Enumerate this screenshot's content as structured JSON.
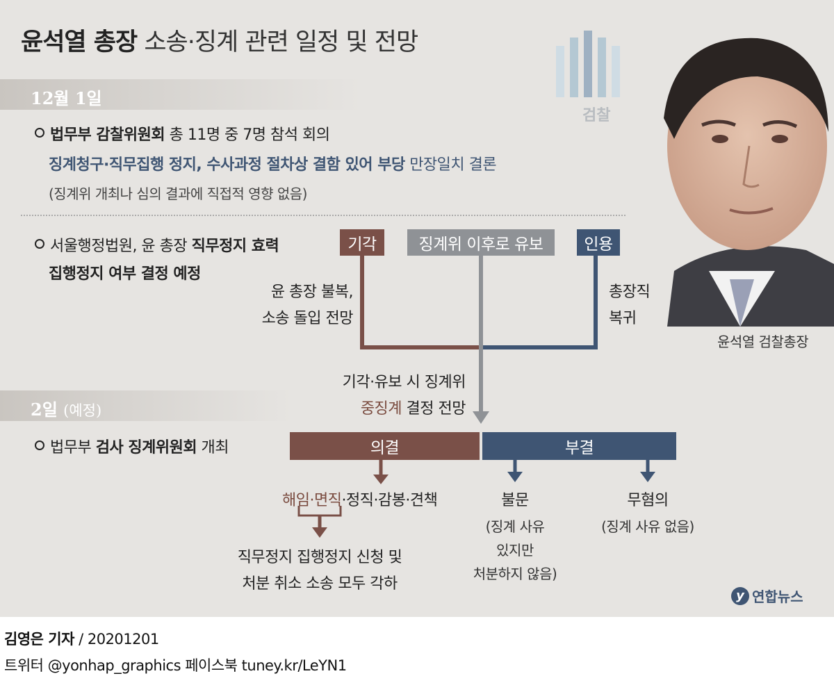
{
  "title": {
    "bold": "윤석열 총장",
    "rest": "소송·징계 관련 일정 및 전망"
  },
  "logo_text": "검찰",
  "photo_caption": "윤석열 검찰총장",
  "date1": "12월 1일",
  "date2": {
    "main": "2일",
    "sub": "(예정)"
  },
  "item1": {
    "line1_bold": "법무부 감찰위원회",
    "line1_rest": " 총 11명 중 7명 참석 회의",
    "line2_blue": "징계청구·직무집행 정지, 수사과정 절차상 결함 있어 부당",
    "line2_rest": " 만장일치 결론",
    "line3": "(징계위 개최나 심의 결과에 직접적 영향 없음)"
  },
  "item2": {
    "line1_plain": "서울행정법원, 윤 총장 ",
    "line1_bold": "직무정지 효력",
    "line2_bold": "집행정지 여부 결정 예정"
  },
  "outcomes": {
    "reject": "기각",
    "defer": "징계위 이후로 유보",
    "accept": "인용",
    "reject_note1": "윤 총장 불복,",
    "reject_note2": "소송 돌입 전망",
    "accept_note1": "총장직",
    "accept_note2": "복귀",
    "merge_note1": "기각·유보 시 징계위",
    "merge_note2_red": "중징계",
    "merge_note2_rest": " 결정 전망"
  },
  "item3": {
    "plain1": "법무부 ",
    "bold": "검사 징계위원회",
    "plain2": " 개최"
  },
  "decision": {
    "resolve": "의결",
    "reject": "부결",
    "penalties_red": "해임·면직",
    "penalties_rest": "·정직·감봉·견책",
    "consequence1": "직무정지 집행정지 신청 및",
    "consequence2": "처분 취소 소송 모두 각하",
    "nomun": "불문",
    "nomun_note1": "(징계 사유",
    "nomun_note2": "있지만",
    "nomun_note3": "처분하지 않음)",
    "muhyeom": "무혐의",
    "muhyeom_note": "(징계 사유 없음)"
  },
  "agency_logo": "연합뉴스",
  "credit": {
    "reporter": "김영은 기자",
    "date": " / 20201201",
    "line2": "트위터 @yonhap_graphics  페이스북 tuney.kr/LeYN1"
  },
  "colors": {
    "brown": "#7a5048",
    "gray": "#8f9296",
    "navy": "#3f5573",
    "bg": "#e6e4e1"
  }
}
